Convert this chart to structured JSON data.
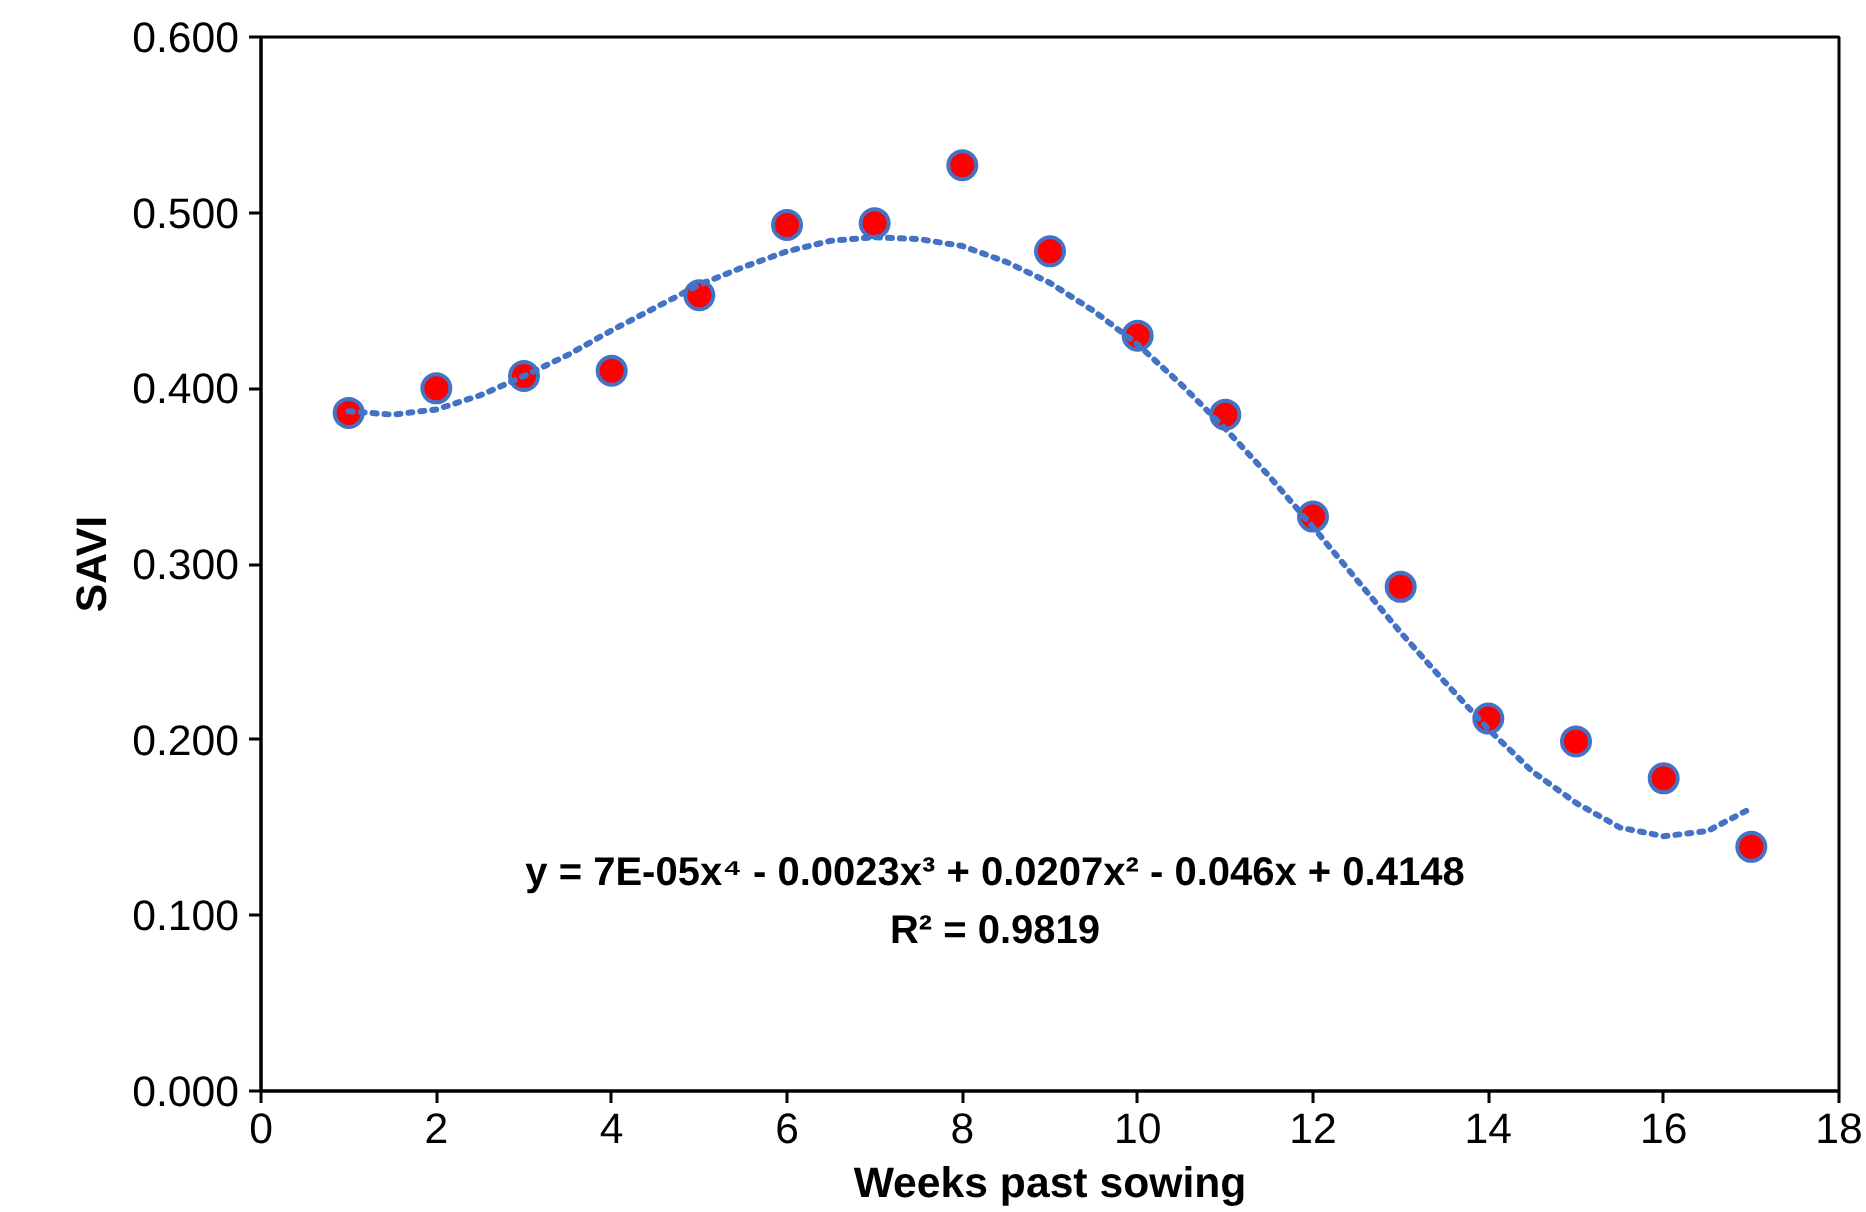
{
  "chart_data": {
    "type": "scatter",
    "xlabel": "Weeks past sowing",
    "ylabel": "SAVI",
    "xlim": [
      0,
      18
    ],
    "xticks": [
      0,
      2,
      4,
      6,
      8,
      10,
      12,
      14,
      16,
      18
    ],
    "ylim": [
      0,
      0.6
    ],
    "yticks": [
      {
        "value": 0,
        "label": "0.000"
      },
      {
        "value": 0.1,
        "label": "0.100"
      },
      {
        "value": 0.2,
        "label": "0.200"
      },
      {
        "value": 0.3,
        "label": "0.300"
      },
      {
        "value": 0.4,
        "label": "0.400"
      },
      {
        "value": 0.5,
        "label": "0.500"
      },
      {
        "value": 0.6,
        "label": "0.600"
      }
    ],
    "grid": false,
    "marker": "circle",
    "series": [
      {
        "color": "#ff0000",
        "x": [
          1,
          2,
          3,
          4,
          5,
          6,
          7,
          8,
          9,
          10,
          11,
          12,
          13,
          14,
          15,
          16,
          17
        ],
        "values": [
          0.386,
          0.4,
          0.407,
          0.41,
          0.453,
          0.493,
          0.494,
          0.527,
          0.478,
          0.43,
          0.385,
          0.327,
          0.287,
          0.212,
          0.199,
          0.178,
          0.139
        ]
      },
      {
        "type": "line",
        "color": "#4472c4",
        "line_style": "dotted",
        "marker": "none",
        "x": [
          1,
          1.5,
          2,
          2.5,
          3,
          3.5,
          4,
          4.5,
          5,
          5.5,
          6,
          6.5,
          7,
          7.5,
          8,
          8.5,
          9,
          9.5,
          10,
          10.5,
          11,
          11.5,
          12,
          12.5,
          13,
          13.5,
          14,
          14.5,
          15,
          15.5,
          16,
          16.5,
          17
        ],
        "values": [
          0.387,
          0.385,
          0.388,
          0.396,
          0.407,
          0.419,
          0.433,
          0.446,
          0.459,
          0.469,
          0.478,
          0.484,
          0.486,
          0.485,
          0.481,
          0.472,
          0.46,
          0.444,
          0.425,
          0.402,
          0.377,
          0.35,
          0.321,
          0.291,
          0.261,
          0.233,
          0.206,
          0.182,
          0.164,
          0.15,
          0.145,
          0.148,
          0.161
        ]
      }
    ],
    "annotations": [
      "y = 7E-05x⁴ - 0.0023x³ + 0.0207x² - 0.046x + 0.4148",
      "R² = 0.9819"
    ]
  }
}
